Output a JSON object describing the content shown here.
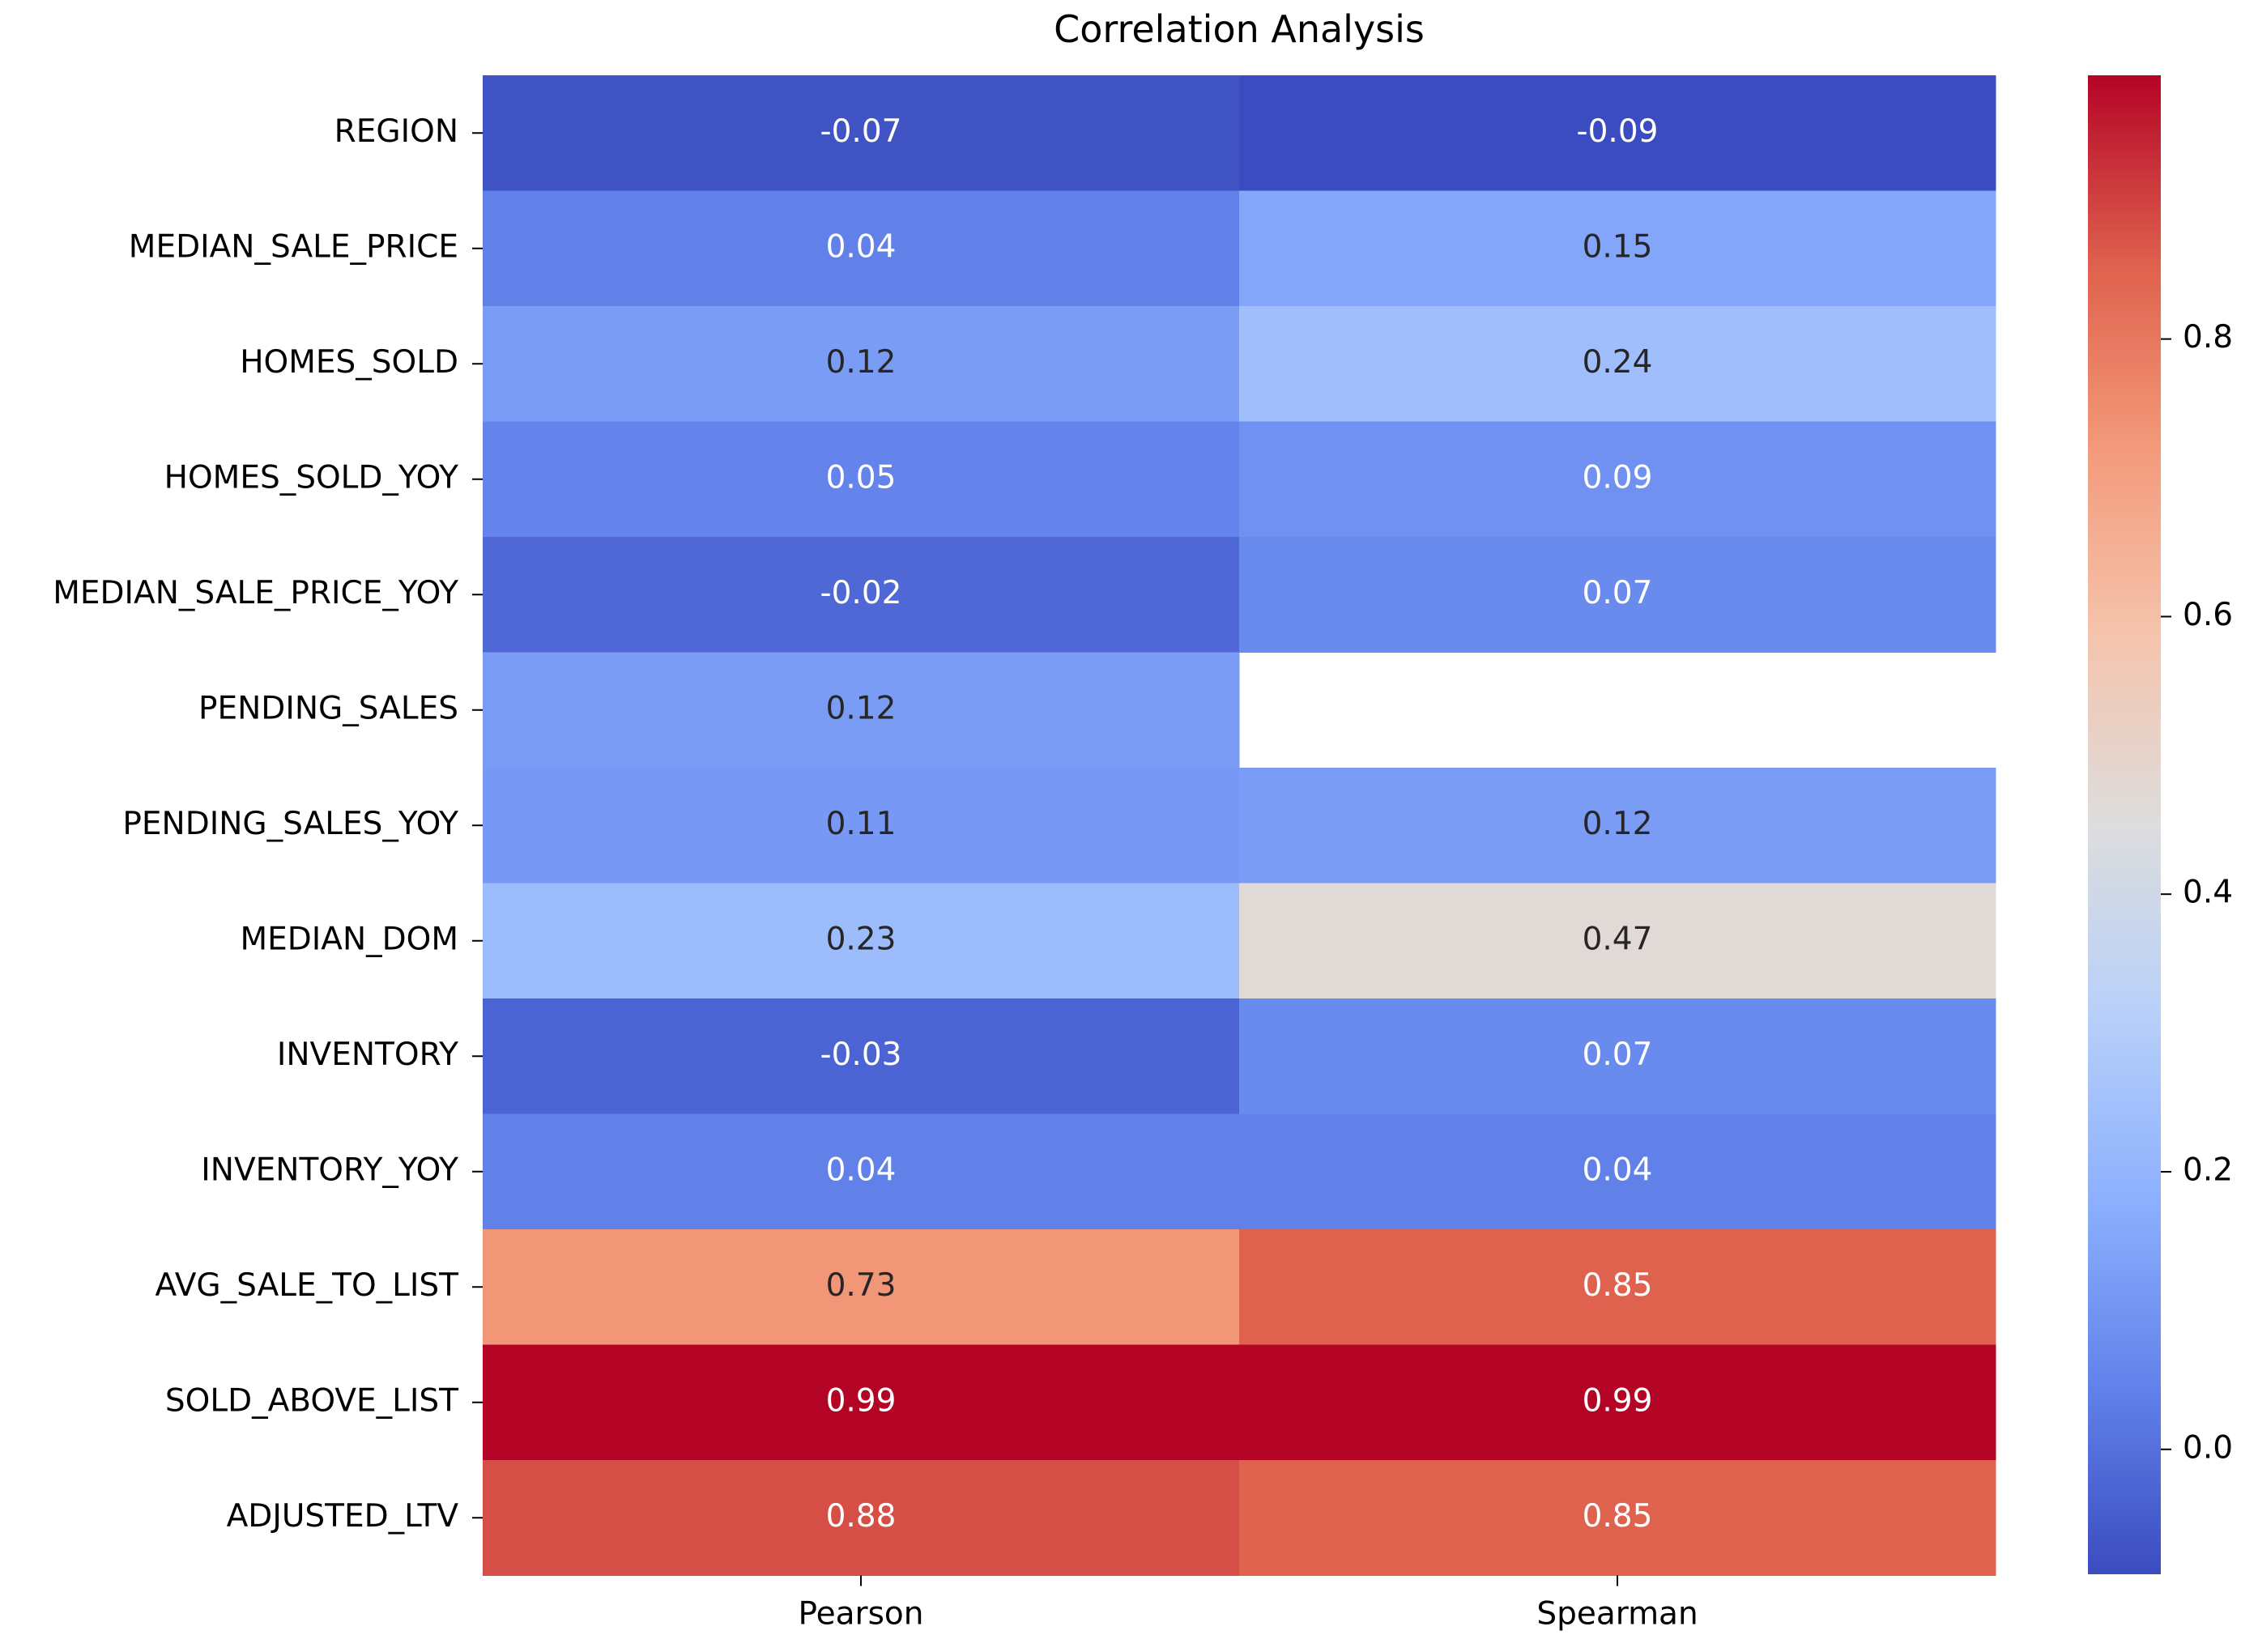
{
  "chart_data": {
    "type": "heatmap",
    "title": "Correlation Analysis",
    "colormap": "coolwarm",
    "columns": [
      "Pearson",
      "Spearman"
    ],
    "rows": [
      "REGION",
      "MEDIAN_SALE_PRICE",
      "HOMES_SOLD",
      "HOMES_SOLD_YOY",
      "MEDIAN_SALE_PRICE_YOY",
      "PENDING_SALES",
      "PENDING_SALES_YOY",
      "MEDIAN_DOM",
      "INVENTORY",
      "INVENTORY_YOY",
      "AVG_SALE_TO_LIST",
      "SOLD_ABOVE_LIST",
      "ADJUSTED_LTV"
    ],
    "values": [
      [
        -0.07,
        -0.09
      ],
      [
        0.04,
        0.15
      ],
      [
        0.12,
        0.24
      ],
      [
        0.05,
        0.09
      ],
      [
        -0.02,
        0.07
      ],
      [
        0.12,
        null
      ],
      [
        0.11,
        0.12
      ],
      [
        0.23,
        0.47
      ],
      [
        -0.03,
        0.07
      ],
      [
        0.04,
        0.04
      ],
      [
        0.73,
        0.85
      ],
      [
        0.99,
        0.99
      ],
      [
        0.88,
        0.85
      ]
    ],
    "labels": [
      [
        "-0.07",
        "-0.09"
      ],
      [
        "0.04",
        "0.15"
      ],
      [
        "0.12",
        "0.24"
      ],
      [
        "0.05",
        "0.09"
      ],
      [
        "-0.02",
        "0.07"
      ],
      [
        "0.12",
        ""
      ],
      [
        "0.11",
        "0.12"
      ],
      [
        "0.23",
        "0.47"
      ],
      [
        "-0.03",
        "0.07"
      ],
      [
        "0.04",
        "0.04"
      ],
      [
        "0.73",
        "0.85"
      ],
      [
        "0.99",
        "0.99"
      ],
      [
        "0.88",
        "0.85"
      ]
    ],
    "colorbar": {
      "range": [
        -0.09,
        0.99
      ],
      "ticks": [
        0.0,
        0.2,
        0.4,
        0.6,
        0.8
      ],
      "tick_labels": [
        "0.0",
        "0.2",
        "0.4",
        "0.6",
        "0.8"
      ]
    }
  }
}
